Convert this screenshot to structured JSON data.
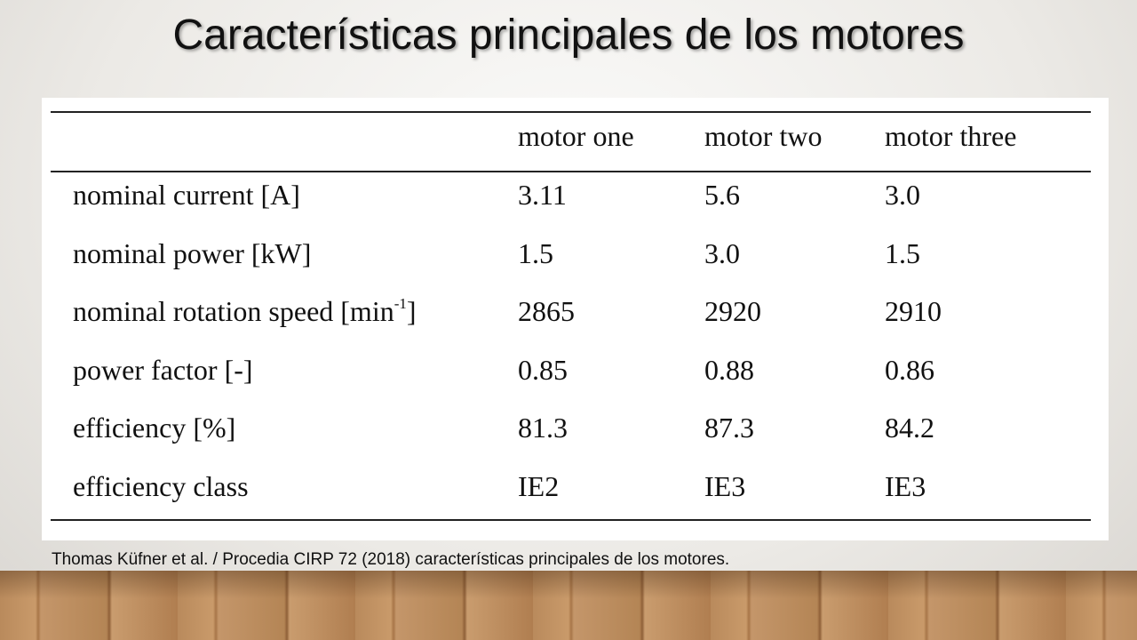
{
  "title": "Características principales de los motores",
  "table": {
    "header": [
      "motor one",
      "motor two",
      "motor three"
    ],
    "rows": [
      {
        "label": [
          "nominal current [A]"
        ],
        "cells": [
          "3.11",
          "5.6",
          "3.0"
        ]
      },
      {
        "label": [
          "nominal power [kW]"
        ],
        "cells": [
          "1.5",
          "3.0",
          "1.5"
        ]
      },
      {
        "label": [
          "nominal rotation speed [min",
          "-1",
          "]"
        ],
        "cells": [
          "2865",
          "2920",
          "2910"
        ]
      },
      {
        "label": [
          "power factor [-]"
        ],
        "cells": [
          "0.85",
          "0.88",
          "0.86"
        ]
      },
      {
        "label": [
          "efficiency [%]"
        ],
        "cells": [
          "81.3",
          "87.3",
          "84.2"
        ]
      },
      {
        "label": [
          "efficiency class"
        ],
        "cells": [
          "IE2",
          "IE3",
          "IE3"
        ]
      }
    ]
  },
  "caption": "Thomas Küfner et al. / Procedia CIRP 72 (2018) características principales de los motores."
}
